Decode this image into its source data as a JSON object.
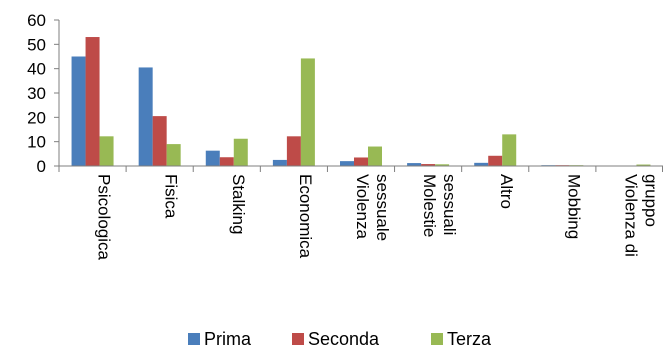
{
  "chart_data": {
    "type": "bar",
    "categories": [
      [
        "Psicologica"
      ],
      [
        "Fisica"
      ],
      [
        "Stalking"
      ],
      [
        "Economica"
      ],
      [
        "Violenza",
        "sessuale"
      ],
      [
        "Molestie",
        "sessuali"
      ],
      [
        "Altro"
      ],
      [
        "Mobbing"
      ],
      [
        "Violenza di",
        "gruppo"
      ]
    ],
    "series": [
      {
        "name": "Prima",
        "color": "#4a7ebb",
        "values": [
          45,
          40.5,
          6.3,
          2.5,
          2,
          1.2,
          1.3,
          0.3,
          0
        ]
      },
      {
        "name": "Seconda",
        "color": "#be4b48",
        "values": [
          53,
          20.5,
          3.6,
          12.2,
          3.5,
          0.8,
          4.2,
          0.1,
          0
        ]
      },
      {
        "name": "Terza",
        "color": "#98b954",
        "values": [
          12.2,
          9,
          11.2,
          44.2,
          8,
          0.7,
          13,
          0.3,
          0.6
        ]
      }
    ],
    "yticks": [
      "0",
      "10",
      "20",
      "30",
      "40",
      "50",
      "60"
    ],
    "ylim": [
      0,
      60
    ],
    "grid": false,
    "legend_position": "bottom"
  }
}
